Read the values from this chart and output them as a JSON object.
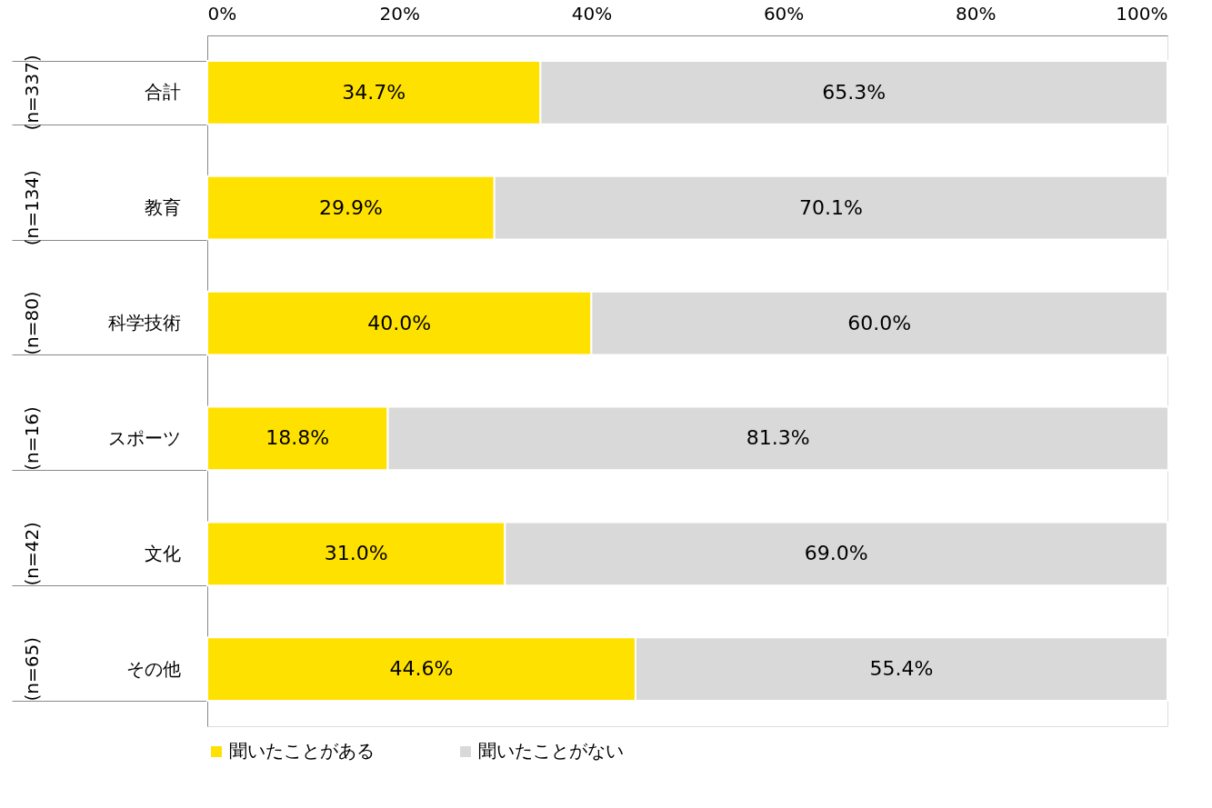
{
  "chart_data": {
    "type": "bar",
    "orientation": "horizontal",
    "stacked": true,
    "categories": [
      "合計",
      "教育",
      "科学技術",
      "スポーツ",
      "文化",
      "その他"
    ],
    "series": [
      {
        "name": "聞いたことがある",
        "color": "#ffe100",
        "values": [
          34.7,
          29.9,
          40.0,
          18.8,
          31.0,
          44.6
        ],
        "value_labels": [
          "34.7%",
          "29.9%",
          "40.0%",
          "18.8%",
          "31.0%",
          "44.6%"
        ]
      },
      {
        "name": "聞いたことがない",
        "color": "#d9d9d9",
        "values": [
          65.3,
          70.1,
          60.0,
          81.3,
          69.0,
          55.4
        ],
        "value_labels": [
          "65.3%",
          "70.1%",
          "60.0%",
          "81.3%",
          "69.0%",
          "55.4%"
        ]
      }
    ],
    "xlim": [
      0,
      100
    ],
    "xticks": [
      {
        "value": 0,
        "label": "0%"
      },
      {
        "value": 20,
        "label": "20%"
      },
      {
        "value": 40,
        "label": "40%"
      },
      {
        "value": 60,
        "label": "60%"
      },
      {
        "value": 80,
        "label": "80%"
      },
      {
        "value": 100,
        "label": "100%"
      }
    ],
    "grid": false,
    "legend": "bottom",
    "annotations": [
      "(n=337)",
      "(n=134)",
      "(n=80)",
      "(n=16)",
      "(n=42)",
      "(n=65)"
    ]
  }
}
